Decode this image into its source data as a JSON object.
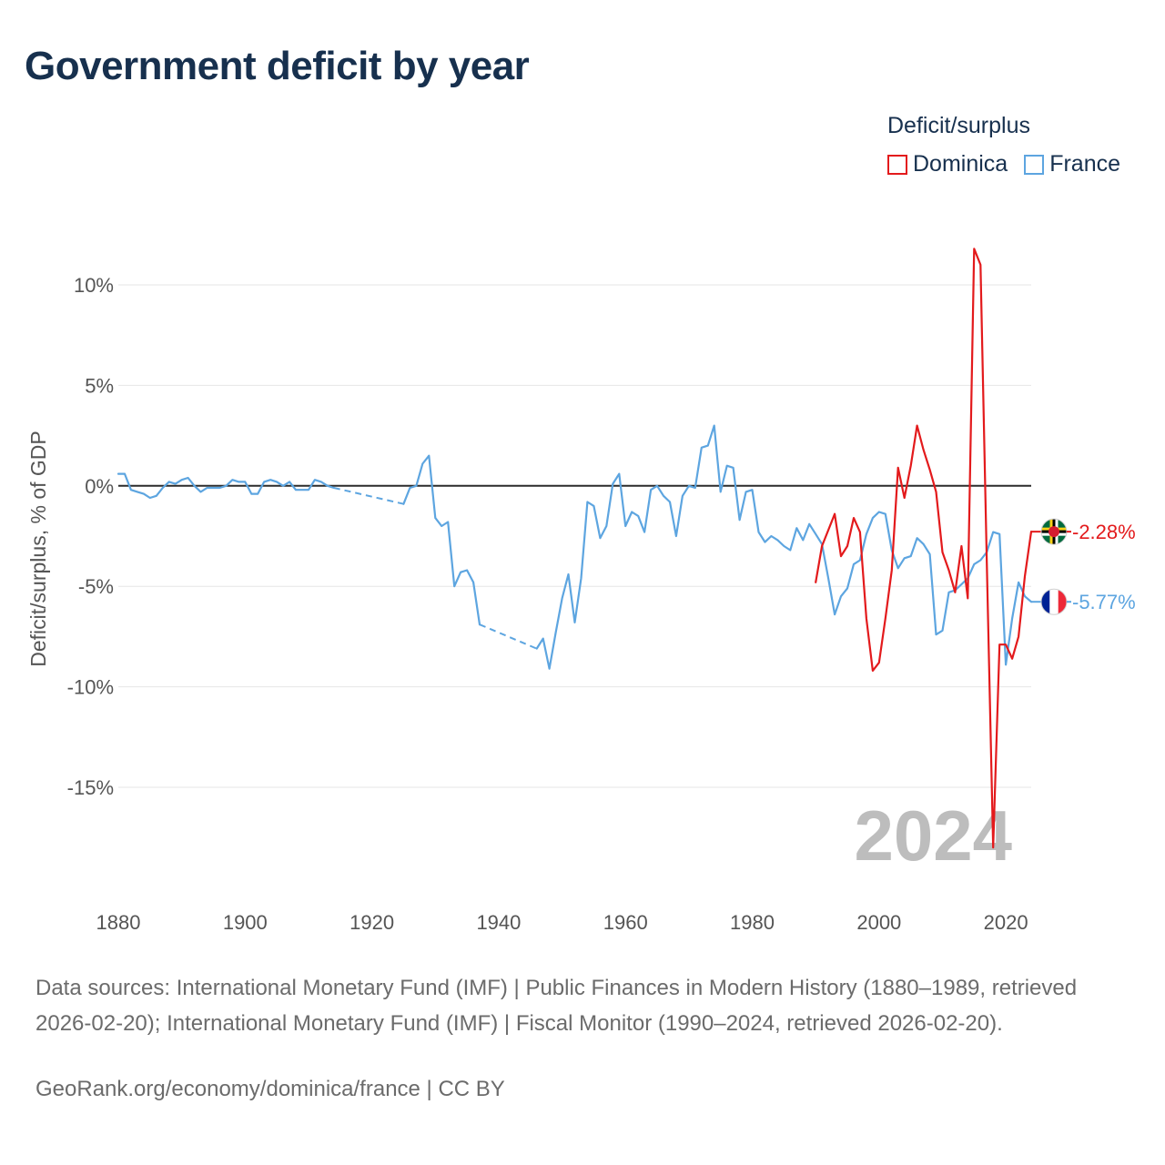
{
  "title": "Government deficit by year",
  "legend": {
    "title": "Deficit/surplus",
    "items": [
      {
        "name": "Dominica",
        "color": "#e31a1c"
      },
      {
        "name": "France",
        "color": "#5da5e0"
      }
    ]
  },
  "chart_data": {
    "type": "line",
    "title": "Government deficit by year",
    "xlabel": "",
    "ylabel": "Deficit/surplus, % of GDP",
    "xlim": [
      1880,
      2024
    ],
    "ylim": [
      -20,
      12.5
    ],
    "x_ticks": [
      1880,
      1900,
      1920,
      1940,
      1960,
      1980,
      2000,
      2020
    ],
    "x_tick_labels": [
      "1880",
      "1900",
      "1920",
      "1940",
      "1960",
      "1980",
      "2000",
      "2020"
    ],
    "y_ticks": [
      10,
      5,
      0,
      -5,
      -10,
      -15
    ],
    "y_tick_labels": [
      "10%",
      "5%",
      "0%",
      "-5%",
      "-10%",
      "-15%"
    ],
    "grid": true,
    "current_year_label": "2024",
    "series": [
      {
        "name": "France",
        "color": "#5da5e0",
        "end_label": "-5.77%",
        "flag": "france-flag",
        "points": [
          [
            1880,
            0.6
          ],
          [
            1881,
            0.6
          ],
          [
            1882,
            -0.2
          ],
          [
            1883,
            -0.3
          ],
          [
            1884,
            -0.4
          ],
          [
            1885,
            -0.6
          ],
          [
            1886,
            -0.5
          ],
          [
            1887,
            -0.1
          ],
          [
            1888,
            0.2
          ],
          [
            1889,
            0.1
          ],
          [
            1890,
            0.3
          ],
          [
            1891,
            0.4
          ],
          [
            1892,
            0.0
          ],
          [
            1893,
            -0.3
          ],
          [
            1894,
            -0.1
          ],
          [
            1895,
            -0.1
          ],
          [
            1896,
            -0.1
          ],
          [
            1897,
            0.0
          ],
          [
            1898,
            0.3
          ],
          [
            1899,
            0.2
          ],
          [
            1900,
            0.2
          ],
          [
            1901,
            -0.4
          ],
          [
            1902,
            -0.4
          ],
          [
            1903,
            0.2
          ],
          [
            1904,
            0.3
          ],
          [
            1905,
            0.2
          ],
          [
            1906,
            0.0
          ],
          [
            1907,
            0.2
          ],
          [
            1908,
            -0.2
          ],
          [
            1909,
            -0.2
          ],
          [
            1910,
            -0.2
          ],
          [
            1911,
            0.3
          ],
          [
            1912,
            0.2
          ],
          [
            1913,
            0.0
          ],
          [
            1914,
            -0.1
          ],
          [
            1925,
            -0.9
          ],
          [
            1926,
            -0.1
          ],
          [
            1927,
            0.0
          ],
          [
            1928,
            1.1
          ],
          [
            1929,
            1.5
          ],
          [
            1930,
            -1.6
          ],
          [
            1931,
            -2.0
          ],
          [
            1932,
            -1.8
          ],
          [
            1933,
            -5.0
          ],
          [
            1934,
            -4.3
          ],
          [
            1935,
            -4.2
          ],
          [
            1936,
            -4.8
          ],
          [
            1937,
            -6.9
          ],
          [
            1946,
            -8.1
          ],
          [
            1947,
            -7.6
          ],
          [
            1948,
            -9.1
          ],
          [
            1949,
            -7.3
          ],
          [
            1950,
            -5.6
          ],
          [
            1951,
            -4.4
          ],
          [
            1952,
            -6.8
          ],
          [
            1953,
            -4.6
          ],
          [
            1954,
            -0.8
          ],
          [
            1955,
            -1.0
          ],
          [
            1956,
            -2.6
          ],
          [
            1957,
            -2.0
          ],
          [
            1958,
            0.1
          ],
          [
            1959,
            0.6
          ],
          [
            1960,
            -2.0
          ],
          [
            1961,
            -1.3
          ],
          [
            1962,
            -1.5
          ],
          [
            1963,
            -2.3
          ],
          [
            1964,
            -0.2
          ],
          [
            1965,
            0.0
          ],
          [
            1966,
            -0.5
          ],
          [
            1967,
            -0.8
          ],
          [
            1968,
            -2.5
          ],
          [
            1969,
            -0.5
          ],
          [
            1970,
            0.0
          ],
          [
            1971,
            -0.1
          ],
          [
            1972,
            1.9
          ],
          [
            1973,
            2.0
          ],
          [
            1974,
            3.0
          ],
          [
            1975,
            -0.3
          ],
          [
            1976,
            1.0
          ],
          [
            1977,
            0.9
          ],
          [
            1978,
            -1.7
          ],
          [
            1979,
            -0.3
          ],
          [
            1980,
            -0.2
          ],
          [
            1981,
            -2.3
          ],
          [
            1982,
            -2.8
          ],
          [
            1983,
            -2.5
          ],
          [
            1984,
            -2.7
          ],
          [
            1985,
            -3.0
          ],
          [
            1986,
            -3.2
          ],
          [
            1987,
            -2.1
          ],
          [
            1988,
            -2.7
          ],
          [
            1989,
            -1.9
          ],
          [
            1990,
            -2.4
          ],
          [
            1991,
            -2.9
          ],
          [
            1992,
            -4.6
          ],
          [
            1993,
            -6.4
          ],
          [
            1994,
            -5.5
          ],
          [
            1995,
            -5.1
          ],
          [
            1996,
            -3.9
          ],
          [
            1997,
            -3.7
          ],
          [
            1998,
            -2.4
          ],
          [
            1999,
            -1.6
          ],
          [
            2000,
            -1.3
          ],
          [
            2001,
            -1.4
          ],
          [
            2002,
            -3.2
          ],
          [
            2003,
            -4.1
          ],
          [
            2004,
            -3.6
          ],
          [
            2005,
            -3.5
          ],
          [
            2006,
            -2.6
          ],
          [
            2007,
            -2.9
          ],
          [
            2008,
            -3.4
          ],
          [
            2009,
            -7.4
          ],
          [
            2010,
            -7.2
          ],
          [
            2011,
            -5.3
          ],
          [
            2012,
            -5.2
          ],
          [
            2013,
            -4.9
          ],
          [
            2014,
            -4.6
          ],
          [
            2015,
            -3.9
          ],
          [
            2016,
            -3.7
          ],
          [
            2017,
            -3.3
          ],
          [
            2018,
            -2.3
          ],
          [
            2019,
            -2.4
          ],
          [
            2020,
            -8.9
          ],
          [
            2021,
            -6.6
          ],
          [
            2022,
            -4.8
          ],
          [
            2023,
            -5.5
          ],
          [
            2024,
            -5.77
          ]
        ]
      },
      {
        "name": "Dominica",
        "color": "#e31a1c",
        "end_label": "-2.28%",
        "flag": "dominica-flag",
        "points": [
          [
            1990,
            -4.8
          ],
          [
            1991,
            -3.0
          ],
          [
            1992,
            -2.2
          ],
          [
            1993,
            -1.4
          ],
          [
            1994,
            -3.5
          ],
          [
            1995,
            -3.0
          ],
          [
            1996,
            -1.6
          ],
          [
            1997,
            -2.3
          ],
          [
            1998,
            -6.6
          ],
          [
            1999,
            -9.2
          ],
          [
            2000,
            -8.8
          ],
          [
            2001,
            -6.6
          ],
          [
            2002,
            -4.2
          ],
          [
            2003,
            0.9
          ],
          [
            2004,
            -0.6
          ],
          [
            2005,
            1.0
          ],
          [
            2006,
            3.0
          ],
          [
            2007,
            1.8
          ],
          [
            2008,
            0.8
          ],
          [
            2009,
            -0.3
          ],
          [
            2010,
            -3.3
          ],
          [
            2011,
            -4.2
          ],
          [
            2012,
            -5.3
          ],
          [
            2013,
            -3.0
          ],
          [
            2014,
            -5.6
          ],
          [
            2015,
            11.8
          ],
          [
            2016,
            11.0
          ],
          [
            2017,
            -3.8
          ],
          [
            2018,
            -18.0
          ],
          [
            2019,
            -7.9
          ],
          [
            2020,
            -7.9
          ],
          [
            2021,
            -8.6
          ],
          [
            2022,
            -7.5
          ],
          [
            2023,
            -4.5
          ],
          [
            2024,
            -2.28
          ]
        ]
      }
    ]
  },
  "footer": {
    "sources": "Data sources: International Monetary Fund (IMF) | Public Finances in Modern History (1880–1989, retrieved 2026-02-20); International Monetary Fund (IMF) | Fiscal Monitor (1990–2024, retrieved 2026-02-20).",
    "credit": "GeoRank.org/economy/dominica/france | CC BY"
  }
}
